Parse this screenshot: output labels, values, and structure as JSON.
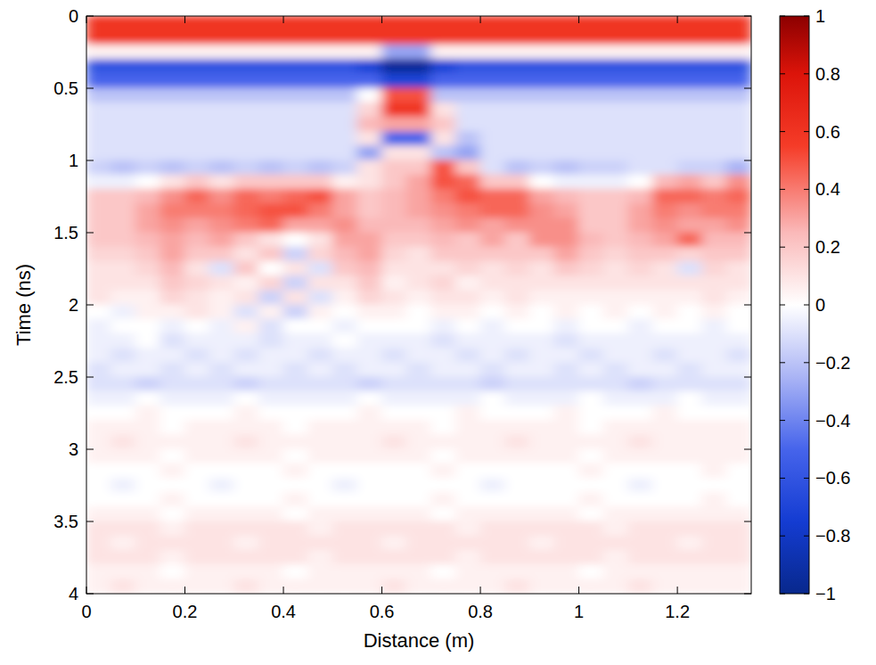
{
  "chart_data": {
    "type": "heatmap",
    "x_label": "Distance (m)",
    "y_label": "Time (ns)",
    "xlim": [
      0,
      1.35
    ],
    "ylim": [
      4,
      0
    ],
    "xticks": [
      0,
      0.2,
      0.4,
      0.6,
      0.8,
      1,
      1.2
    ],
    "yticks": [
      0,
      0.5,
      1,
      1.5,
      2,
      2.5,
      3,
      3.5,
      4
    ],
    "x": [
      0.025,
      0.075,
      0.125,
      0.175,
      0.225,
      0.275,
      0.325,
      0.375,
      0.425,
      0.475,
      0.525,
      0.575,
      0.625,
      0.675,
      0.725,
      0.775,
      0.825,
      0.875,
      0.925,
      0.975,
      1.025,
      1.075,
      1.125,
      1.175,
      1.225,
      1.275,
      1.325
    ],
    "y": [
      0.05,
      0.15,
      0.25,
      0.35,
      0.45,
      0.55,
      0.65,
      0.75,
      0.85,
      0.95,
      1.05,
      1.15,
      1.25,
      1.35,
      1.45,
      1.55,
      1.65,
      1.75,
      1.85,
      1.95,
      2.05,
      2.15,
      2.25,
      2.35,
      2.45,
      2.55,
      2.65,
      2.75,
      2.85,
      2.95,
      3.05,
      3.15,
      3.25,
      3.35,
      3.45,
      3.55,
      3.65,
      3.75,
      3.85,
      3.95
    ],
    "values": [
      [
        0.6,
        0.6,
        0.6,
        0.6,
        0.6,
        0.6,
        0.6,
        0.6,
        0.6,
        0.6,
        0.6,
        0.6,
        0.6,
        0.6,
        0.6,
        0.6,
        0.6,
        0.6,
        0.6,
        0.6,
        0.6,
        0.6,
        0.6,
        0.6,
        0.6,
        0.6,
        0.6
      ],
      [
        0.6,
        0.6,
        0.6,
        0.6,
        0.6,
        0.6,
        0.6,
        0.6,
        0.6,
        0.6,
        0.6,
        0.6,
        0.6,
        0.6,
        0.6,
        0.6,
        0.6,
        0.6,
        0.6,
        0.6,
        0.6,
        0.6,
        0.6,
        0.6,
        0.6,
        0.6,
        0.6
      ],
      [
        0.05,
        0.05,
        0.05,
        0.05,
        0.05,
        0.05,
        0.05,
        0.05,
        0.05,
        0.05,
        0.05,
        0.05,
        -0.3,
        -0.3,
        0.05,
        0.05,
        0.05,
        0.05,
        0.05,
        0.05,
        0.05,
        0.05,
        0.05,
        0.05,
        0.05,
        0.05,
        0.05
      ],
      [
        -0.6,
        -0.6,
        -0.6,
        -0.6,
        -0.6,
        -0.6,
        -0.6,
        -0.6,
        -0.6,
        -0.6,
        -0.6,
        -0.7,
        -0.95,
        -0.95,
        -0.7,
        -0.6,
        -0.6,
        -0.6,
        -0.6,
        -0.6,
        -0.6,
        -0.6,
        -0.6,
        -0.6,
        -0.6,
        -0.6,
        -0.6
      ],
      [
        -0.5,
        -0.5,
        -0.5,
        -0.5,
        -0.5,
        -0.5,
        -0.5,
        -0.5,
        -0.5,
        -0.5,
        -0.5,
        -0.5,
        -0.7,
        -0.7,
        -0.5,
        -0.5,
        -0.5,
        -0.5,
        -0.5,
        -0.5,
        -0.5,
        -0.5,
        -0.5,
        -0.5,
        -0.5,
        -0.5,
        -0.5
      ],
      [
        -0.2,
        -0.2,
        -0.2,
        -0.2,
        -0.2,
        -0.2,
        -0.2,
        -0.2,
        -0.2,
        -0.2,
        -0.2,
        0,
        0.5,
        0.5,
        -0.2,
        -0.2,
        -0.2,
        -0.2,
        -0.2,
        -0.2,
        -0.2,
        -0.2,
        -0.2,
        -0.2,
        -0.2,
        -0.2,
        -0.2
      ],
      [
        -0.1,
        -0.1,
        -0.1,
        -0.1,
        -0.1,
        -0.1,
        -0.1,
        -0.1,
        -0.1,
        -0.1,
        -0.1,
        0.15,
        0.6,
        0.6,
        0.1,
        -0.1,
        -0.1,
        -0.1,
        -0.1,
        -0.1,
        -0.1,
        -0.1,
        -0.1,
        -0.1,
        -0.1,
        -0.1,
        -0.1
      ],
      [
        -0.1,
        -0.1,
        -0.1,
        -0.1,
        -0.1,
        -0.1,
        -0.1,
        -0.1,
        -0.1,
        -0.1,
        -0.1,
        0.25,
        0.3,
        0.3,
        0.2,
        -0.1,
        -0.1,
        -0.1,
        -0.1,
        -0.1,
        -0.1,
        -0.1,
        -0.1,
        -0.1,
        -0.1,
        -0.1,
        -0.1
      ],
      [
        -0.1,
        -0.1,
        -0.1,
        -0.1,
        -0.1,
        -0.1,
        -0.1,
        -0.1,
        -0.1,
        -0.1,
        -0.1,
        0.1,
        -0.5,
        -0.5,
        0.1,
        -0.2,
        -0.1,
        -0.1,
        -0.1,
        -0.1,
        -0.1,
        -0.1,
        -0.1,
        -0.1,
        -0.1,
        -0.1,
        -0.1
      ],
      [
        -0.1,
        -0.1,
        -0.1,
        -0.1,
        -0.1,
        -0.1,
        -0.1,
        -0.1,
        -0.1,
        -0.1,
        -0.1,
        -0.3,
        0.1,
        0.1,
        -0.2,
        -0.3,
        -0.1,
        -0.1,
        -0.1,
        -0.1,
        -0.1,
        -0.1,
        -0.1,
        -0.1,
        -0.1,
        -0.1,
        -0.1
      ],
      [
        -0.15,
        -0.2,
        -0.15,
        -0.2,
        -0.15,
        -0.2,
        -0.15,
        -0.2,
        -0.15,
        -0.2,
        -0.15,
        0.1,
        0.2,
        0.2,
        0.5,
        0.2,
        -0.1,
        -0.2,
        -0.15,
        -0.2,
        -0.15,
        -0.15,
        -0.1,
        -0.1,
        -0.15,
        -0.15,
        -0.25
      ],
      [
        -0.05,
        -0.05,
        0,
        0.1,
        0.2,
        0.1,
        0.2,
        0.2,
        0.2,
        0.2,
        0.05,
        0.1,
        0.2,
        0.3,
        0.5,
        0.45,
        0.2,
        0.2,
        0,
        -0.05,
        -0.05,
        -0.05,
        0,
        0.25,
        0.3,
        0.2,
        0.35
      ],
      [
        0.2,
        0.2,
        0.25,
        0.35,
        0.45,
        0.35,
        0.45,
        0.4,
        0.45,
        0.5,
        0.3,
        0.2,
        0.25,
        0.3,
        0.4,
        0.5,
        0.45,
        0.45,
        0.3,
        0.25,
        0.2,
        0.2,
        0.25,
        0.45,
        0.45,
        0.4,
        0.45
      ],
      [
        0.2,
        0.2,
        0.3,
        0.4,
        0.4,
        0.4,
        0.45,
        0.5,
        0.5,
        0.4,
        0.3,
        0.2,
        0.25,
        0.3,
        0.35,
        0.4,
        0.45,
        0.45,
        0.35,
        0.3,
        0.2,
        0.2,
        0.3,
        0.4,
        0.35,
        0.4,
        0.4
      ],
      [
        0.2,
        0.2,
        0.3,
        0.35,
        0.3,
        0.35,
        0.4,
        0.45,
        0.3,
        0.3,
        0.35,
        0.25,
        0.25,
        0.25,
        0.3,
        0.35,
        0.3,
        0.35,
        0.35,
        0.35,
        0.2,
        0.2,
        0.3,
        0.35,
        0.3,
        0.3,
        0.35
      ],
      [
        0.2,
        0.2,
        0.25,
        0.3,
        0.25,
        0.3,
        0.2,
        0.1,
        0,
        0.1,
        0.3,
        0.3,
        0.2,
        0.2,
        0.25,
        0.2,
        0.3,
        0.2,
        0.35,
        0.35,
        0.25,
        0.2,
        0.25,
        0.3,
        0.45,
        0.25,
        0.25
      ],
      [
        0.15,
        0.15,
        0.2,
        0.3,
        0.2,
        0.2,
        0.1,
        0.2,
        -0.15,
        0.15,
        0.25,
        0.3,
        0.15,
        0.1,
        0.2,
        0.2,
        0.2,
        0.2,
        0.2,
        0.3,
        0.2,
        0.15,
        0.2,
        0.2,
        0.15,
        0.2,
        0.2
      ],
      [
        0.1,
        0.1,
        0.15,
        0.25,
        0.1,
        -0.1,
        0.2,
        0,
        0.1,
        -0.1,
        0.2,
        0.25,
        0.1,
        0.1,
        0.1,
        0.15,
        0.1,
        0.15,
        0.1,
        0.2,
        0.15,
        0.1,
        0.15,
        0.1,
        -0.1,
        0.15,
        0.1
      ],
      [
        0.1,
        0.1,
        0.1,
        0.2,
        0.15,
        0.1,
        0.05,
        0.15,
        -0.15,
        0.1,
        0.1,
        0.2,
        0.05,
        0.1,
        0.15,
        0.05,
        0.1,
        0.1,
        0.1,
        0.1,
        0.1,
        0.1,
        0.1,
        0.1,
        0.1,
        0.1,
        0.1
      ],
      [
        0.1,
        0.05,
        0.05,
        0.15,
        0.1,
        0.05,
        0.1,
        -0.15,
        0.1,
        -0.1,
        0.05,
        0.15,
        0.1,
        0.05,
        0.1,
        0.1,
        0.05,
        0.1,
        0.05,
        0.05,
        0.05,
        0.05,
        0.05,
        0.05,
        0.05,
        0.1,
        0.05
      ],
      [
        0,
        -0.05,
        0.05,
        0.05,
        0.1,
        0.05,
        -0.1,
        0.05,
        -0.15,
        0.05,
        0,
        0.05,
        0.05,
        0,
        0.05,
        0.05,
        0,
        0.05,
        0,
        0.05,
        0,
        0.05,
        0,
        0.05,
        0,
        0.05,
        0
      ],
      [
        -0.05,
        0,
        0,
        -0.05,
        0,
        -0.05,
        0.05,
        -0.1,
        0,
        0,
        -0.05,
        0,
        0,
        0,
        -0.05,
        0,
        -0.05,
        0,
        0,
        -0.05,
        0,
        0,
        -0.05,
        0,
        0,
        -0.05,
        0
      ],
      [
        -0.05,
        -0.05,
        0,
        -0.1,
        -0.05,
        -0.05,
        -0.05,
        -0.1,
        -0.05,
        -0.05,
        0,
        -0.05,
        -0.05,
        -0.05,
        -0.1,
        -0.05,
        -0.05,
        -0.05,
        -0.05,
        -0.1,
        -0.05,
        -0.05,
        -0.05,
        -0.05,
        -0.05,
        -0.05,
        -0.05
      ],
      [
        -0.05,
        -0.1,
        -0.05,
        -0.05,
        -0.1,
        -0.05,
        -0.1,
        -0.05,
        -0.05,
        -0.1,
        -0.05,
        -0.05,
        -0.1,
        -0.05,
        -0.05,
        -0.1,
        -0.05,
        -0.1,
        -0.05,
        -0.05,
        -0.1,
        -0.05,
        -0.05,
        -0.1,
        -0.05,
        -0.05,
        -0.1
      ],
      [
        -0.1,
        -0.05,
        -0.05,
        -0.1,
        -0.05,
        -0.1,
        -0.05,
        -0.05,
        -0.1,
        -0.05,
        -0.1,
        -0.05,
        -0.05,
        -0.1,
        -0.05,
        -0.05,
        -0.1,
        -0.05,
        -0.05,
        -0.1,
        -0.05,
        -0.1,
        -0.05,
        -0.05,
        -0.1,
        -0.05,
        -0.05
      ],
      [
        -0.1,
        -0.1,
        -0.15,
        -0.1,
        -0.1,
        -0.1,
        -0.15,
        -0.1,
        -0.1,
        -0.1,
        -0.1,
        -0.15,
        -0.1,
        -0.1,
        -0.1,
        -0.1,
        -0.15,
        -0.1,
        -0.1,
        -0.1,
        -0.1,
        -0.1,
        -0.15,
        -0.1,
        -0.1,
        -0.1,
        -0.1
      ],
      [
        -0.05,
        -0.05,
        0,
        -0.05,
        -0.05,
        -0.05,
        0,
        -0.05,
        -0.05,
        -0.05,
        -0.05,
        0,
        -0.05,
        -0.05,
        -0.05,
        -0.05,
        0,
        -0.05,
        -0.05,
        -0.05,
        0,
        -0.05,
        -0.05,
        -0.05,
        0,
        -0.05,
        -0.05
      ],
      [
        0,
        0,
        0.05,
        0,
        0,
        0,
        0.05,
        0,
        0,
        0,
        0,
        0.05,
        0,
        0,
        0,
        0.05,
        0,
        0,
        0,
        0.05,
        0,
        0,
        0,
        0.05,
        0,
        0,
        0
      ],
      [
        0.05,
        0.05,
        0.05,
        0,
        0.05,
        0.05,
        0.05,
        0.05,
        0,
        0.05,
        0.05,
        0.05,
        0.05,
        0.05,
        0,
        0.05,
        0.05,
        0.05,
        0.05,
        0.05,
        0,
        0.05,
        0.05,
        0.05,
        0.05,
        0.05,
        0.05
      ],
      [
        0.05,
        0.1,
        0.05,
        0.05,
        0.05,
        0.05,
        0.1,
        0.05,
        0.05,
        0.05,
        0.05,
        0.05,
        0.1,
        0.05,
        0.05,
        0.05,
        0.05,
        0.1,
        0.05,
        0.05,
        0.05,
        0.05,
        0.1,
        0.05,
        0.05,
        0.05,
        0.05
      ],
      [
        0.05,
        0.05,
        0.05,
        0,
        0.05,
        0.05,
        0.05,
        0.05,
        0,
        0.05,
        0.05,
        0.05,
        0.05,
        0.05,
        0,
        0.05,
        0.05,
        0.05,
        0.05,
        0.05,
        0,
        0.05,
        0.05,
        0.05,
        0.05,
        0.05,
        0.05
      ],
      [
        0,
        0,
        0,
        0.05,
        0,
        0,
        0,
        0,
        0.05,
        0,
        0,
        0,
        0,
        0,
        0.05,
        0,
        0,
        0,
        0,
        0,
        0.05,
        0,
        0,
        0,
        0,
        0.05,
        0
      ],
      [
        0,
        -0.05,
        0,
        0,
        0,
        -0.05,
        0,
        0,
        0,
        0,
        -0.05,
        0,
        0,
        0,
        0,
        0,
        -0.05,
        0,
        0,
        0,
        0,
        0,
        -0.05,
        0,
        0,
        0,
        0
      ],
      [
        0,
        0,
        0,
        0.05,
        0,
        0,
        0,
        0,
        0.05,
        0,
        0,
        0,
        0,
        0,
        0.05,
        0,
        0,
        0,
        0,
        0,
        0.05,
        0,
        0,
        0,
        0,
        0.05,
        0
      ],
      [
        0.05,
        0.05,
        0.05,
        0,
        0.05,
        0.05,
        0.05,
        0.05,
        0,
        0.05,
        0.05,
        0.05,
        0.05,
        0.05,
        0,
        0.05,
        0.05,
        0.05,
        0.05,
        0.05,
        0,
        0.05,
        0.05,
        0.05,
        0.05,
        0.05,
        0.05
      ],
      [
        0.1,
        0.1,
        0.1,
        0.05,
        0.1,
        0.1,
        0.1,
        0.1,
        0.1,
        0.05,
        0.1,
        0.1,
        0.1,
        0.1,
        0.1,
        0.05,
        0.1,
        0.1,
        0.1,
        0.1,
        0.1,
        0.05,
        0.1,
        0.1,
        0.1,
        0.1,
        0.1
      ],
      [
        0.1,
        0.05,
        0.1,
        0.1,
        0.1,
        0.1,
        0.05,
        0.1,
        0.1,
        0.1,
        0.1,
        0.1,
        0.05,
        0.1,
        0.1,
        0.1,
        0.1,
        0.1,
        0.05,
        0.1,
        0.1,
        0.1,
        0.1,
        0.1,
        0.05,
        0.1,
        0.1
      ],
      [
        0.1,
        0.1,
        0.1,
        0.05,
        0.1,
        0.1,
        0.1,
        0.1,
        0.1,
        0.05,
        0.1,
        0.1,
        0.1,
        0.1,
        0.1,
        0.05,
        0.1,
        0.1,
        0.1,
        0.1,
        0.1,
        0.05,
        0.1,
        0.1,
        0.1,
        0.1,
        0.1
      ],
      [
        0.05,
        0.05,
        0.05,
        0,
        0.05,
        0.05,
        0.05,
        0.05,
        0,
        0.05,
        0.05,
        0.05,
        0.05,
        0.05,
        0,
        0.05,
        0.05,
        0.05,
        0.05,
        0.05,
        0,
        0.05,
        0.05,
        0.05,
        0.05,
        0.05,
        0.05
      ],
      [
        0.05,
        0.1,
        0.05,
        0.05,
        0.05,
        0.05,
        0.1,
        0.05,
        0.05,
        0.05,
        0.05,
        0.05,
        0.1,
        0.05,
        0.05,
        0.05,
        0.05,
        0.1,
        0.05,
        0.05,
        0.05,
        0.05,
        0.1,
        0.05,
        0.05,
        0.05,
        0.05
      ]
    ],
    "color_range": [
      -1,
      1
    ],
    "color_ticks": [
      {
        "value": -1,
        "label": "−1"
      },
      {
        "value": -0.8,
        "label": "−0.8"
      },
      {
        "value": -0.6,
        "label": "−0.6"
      },
      {
        "value": -0.4,
        "label": "−0.4"
      },
      {
        "value": -0.2,
        "label": "−0.2"
      },
      0,
      0.2,
      0.4,
      0.6,
      0.8,
      1
    ]
  }
}
